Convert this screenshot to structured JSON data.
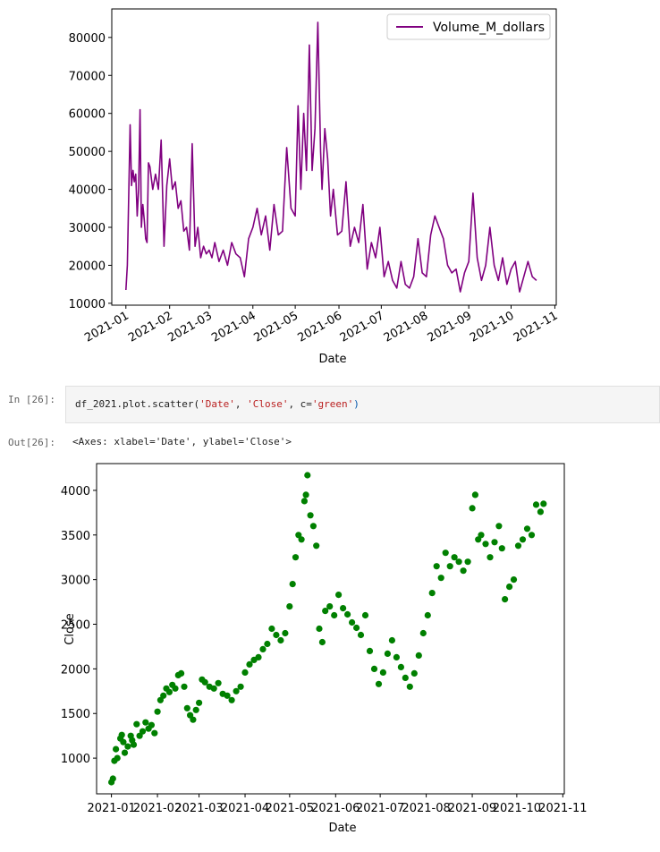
{
  "cells": {
    "input_prompt": "In [26]:",
    "output_prompt": "Out[26]:",
    "code": {
      "prefix": "df_2021.plot.scatter(",
      "arg1": "'Date'",
      "sep1": ", ",
      "arg2": "'Close'",
      "sep2": ", c=",
      "arg3": "'green'",
      "suffix": ")"
    },
    "output_text": "<Axes: xlabel='Date', ylabel='Close'>"
  },
  "colors": {
    "line": "#800080",
    "scatter": "#008000"
  },
  "chart_data": [
    {
      "type": "line",
      "title": "",
      "xlabel": "Date",
      "ylabel": "",
      "legend": {
        "position": "top-right",
        "entries": [
          "Volume_M_dollars"
        ]
      },
      "x_ticks": [
        "2021-01",
        "2021-02",
        "2021-03",
        "2021-04",
        "2021-05",
        "2021-06",
        "2021-07",
        "2021-08",
        "2021-09",
        "2021-10",
        "2021-11"
      ],
      "y_ticks": [
        "10000",
        "20000",
        "30000",
        "40000",
        "50000",
        "60000",
        "70000",
        "80000"
      ],
      "xlim": [
        "2020-12-22",
        "2021-11-02"
      ],
      "ylim": [
        9500,
        87500
      ],
      "series": [
        {
          "name": "Volume_M_dollars",
          "color": "#800080",
          "x": [
            "2021-01-01",
            "2021-01-02",
            "2021-01-04",
            "2021-01-05",
            "2021-01-06",
            "2021-01-07",
            "2021-01-08",
            "2021-01-09",
            "2021-01-10",
            "2021-01-11",
            "2021-01-12",
            "2021-01-13",
            "2021-01-14",
            "2021-01-15",
            "2021-01-16",
            "2021-01-17",
            "2021-01-18",
            "2021-01-20",
            "2021-01-22",
            "2021-01-24",
            "2021-01-26",
            "2021-01-28",
            "2021-01-30",
            "2021-02-01",
            "2021-02-03",
            "2021-02-05",
            "2021-02-07",
            "2021-02-09",
            "2021-02-11",
            "2021-02-13",
            "2021-02-15",
            "2021-02-17",
            "2021-02-19",
            "2021-02-21",
            "2021-02-23",
            "2021-02-25",
            "2021-02-27",
            "2021-03-01",
            "2021-03-03",
            "2021-03-05",
            "2021-03-08",
            "2021-03-11",
            "2021-03-14",
            "2021-03-17",
            "2021-03-20",
            "2021-03-23",
            "2021-03-26",
            "2021-03-29",
            "2021-04-01",
            "2021-04-04",
            "2021-04-07",
            "2021-04-10",
            "2021-04-13",
            "2021-04-16",
            "2021-04-19",
            "2021-04-22",
            "2021-04-25",
            "2021-04-28",
            "2021-05-01",
            "2021-05-03",
            "2021-05-05",
            "2021-05-07",
            "2021-05-09",
            "2021-05-11",
            "2021-05-13",
            "2021-05-15",
            "2021-05-17",
            "2021-05-19",
            "2021-05-20",
            "2021-05-22",
            "2021-05-24",
            "2021-05-26",
            "2021-05-28",
            "2021-05-31",
            "2021-06-03",
            "2021-06-06",
            "2021-06-09",
            "2021-06-12",
            "2021-06-15",
            "2021-06-18",
            "2021-06-21",
            "2021-06-24",
            "2021-06-27",
            "2021-06-30",
            "2021-07-03",
            "2021-07-06",
            "2021-07-09",
            "2021-07-12",
            "2021-07-15",
            "2021-07-18",
            "2021-07-21",
            "2021-07-24",
            "2021-07-27",
            "2021-07-30",
            "2021-08-02",
            "2021-08-05",
            "2021-08-08",
            "2021-08-11",
            "2021-08-14",
            "2021-08-17",
            "2021-08-20",
            "2021-08-23",
            "2021-08-26",
            "2021-08-29",
            "2021-09-01",
            "2021-09-04",
            "2021-09-07",
            "2021-09-10",
            "2021-09-13",
            "2021-09-16",
            "2021-09-19",
            "2021-09-22",
            "2021-09-25",
            "2021-09-28",
            "2021-10-01",
            "2021-10-04",
            "2021-10-07",
            "2021-10-10",
            "2021-10-13",
            "2021-10-16",
            "2021-10-19"
          ],
          "values": [
            13500,
            20000,
            57000,
            41000,
            45000,
            42000,
            44000,
            33000,
            40000,
            61000,
            30000,
            36000,
            32000,
            27000,
            26000,
            47000,
            46000,
            40000,
            44000,
            40000,
            53000,
            25000,
            41000,
            48000,
            40000,
            42000,
            35000,
            37000,
            29000,
            30000,
            24000,
            52000,
            25000,
            30000,
            22000,
            25000,
            23000,
            24000,
            22000,
            26000,
            21000,
            24000,
            20000,
            26000,
            23000,
            22000,
            17000,
            27000,
            30000,
            35000,
            28000,
            33000,
            24000,
            36000,
            28000,
            29000,
            51000,
            35000,
            33000,
            62000,
            40000,
            60000,
            45000,
            78000,
            45000,
            56000,
            84000,
            50000,
            40000,
            56000,
            48000,
            33000,
            40000,
            28000,
            29000,
            42000,
            25000,
            30000,
            26000,
            36000,
            19000,
            26000,
            22000,
            30000,
            17000,
            21000,
            16000,
            14000,
            21000,
            15000,
            14000,
            17000,
            27000,
            18000,
            17000,
            28000,
            33000,
            30000,
            27000,
            20000,
            18000,
            19000,
            13000,
            18000,
            21000,
            39000,
            22000,
            16000,
            20000,
            30000,
            20000,
            16000,
            22000,
            15000,
            19000,
            21000,
            13000,
            17000,
            21000,
            17000,
            16000
          ]
        }
      ]
    },
    {
      "type": "scatter",
      "title": "",
      "xlabel": "Date",
      "ylabel": "Close",
      "x_ticks": [
        "2021-01",
        "2021-02",
        "2021-03",
        "2021-04",
        "2021-05",
        "2021-06",
        "2021-07",
        "2021-08",
        "2021-09",
        "2021-10",
        "2021-11"
      ],
      "y_ticks": [
        "1000",
        "1500",
        "2000",
        "2500",
        "3000",
        "3500",
        "4000"
      ],
      "xlim": [
        "2020-12-22",
        "2021-11-02"
      ],
      "ylim": [
        600,
        4300
      ],
      "series": [
        {
          "name": "",
          "color": "#008000",
          "x": [
            "2021-01-01",
            "2021-01-02",
            "2021-01-03",
            "2021-01-04",
            "2021-01-05",
            "2021-01-07",
            "2021-01-08",
            "2021-01-09",
            "2021-01-10",
            "2021-01-12",
            "2021-01-14",
            "2021-01-15",
            "2021-01-16",
            "2021-01-18",
            "2021-01-20",
            "2021-01-22",
            "2021-01-24",
            "2021-01-26",
            "2021-01-28",
            "2021-01-30",
            "2021-02-01",
            "2021-02-03",
            "2021-02-05",
            "2021-02-07",
            "2021-02-09",
            "2021-02-11",
            "2021-02-13",
            "2021-02-15",
            "2021-02-17",
            "2021-02-19",
            "2021-02-21",
            "2021-02-23",
            "2021-02-25",
            "2021-02-27",
            "2021-03-01",
            "2021-03-03",
            "2021-03-05",
            "2021-03-08",
            "2021-03-11",
            "2021-03-14",
            "2021-03-17",
            "2021-03-20",
            "2021-03-23",
            "2021-03-26",
            "2021-03-29",
            "2021-04-01",
            "2021-04-04",
            "2021-04-07",
            "2021-04-10",
            "2021-04-13",
            "2021-04-16",
            "2021-04-19",
            "2021-04-22",
            "2021-04-25",
            "2021-04-28",
            "2021-05-01",
            "2021-05-03",
            "2021-05-05",
            "2021-05-07",
            "2021-05-09",
            "2021-05-11",
            "2021-05-12",
            "2021-05-13",
            "2021-05-15",
            "2021-05-17",
            "2021-05-19",
            "2021-05-21",
            "2021-05-23",
            "2021-05-25",
            "2021-05-28",
            "2021-05-31",
            "2021-06-03",
            "2021-06-06",
            "2021-06-09",
            "2021-06-12",
            "2021-06-15",
            "2021-06-18",
            "2021-06-21",
            "2021-06-24",
            "2021-06-27",
            "2021-06-30",
            "2021-07-03",
            "2021-07-06",
            "2021-07-09",
            "2021-07-12",
            "2021-07-15",
            "2021-07-18",
            "2021-07-21",
            "2021-07-24",
            "2021-07-27",
            "2021-07-30",
            "2021-08-02",
            "2021-08-05",
            "2021-08-08",
            "2021-08-11",
            "2021-08-14",
            "2021-08-17",
            "2021-08-20",
            "2021-08-23",
            "2021-08-26",
            "2021-08-29",
            "2021-09-01",
            "2021-09-03",
            "2021-09-05",
            "2021-09-07",
            "2021-09-10",
            "2021-09-13",
            "2021-09-16",
            "2021-09-19",
            "2021-09-21",
            "2021-09-23",
            "2021-09-26",
            "2021-09-29",
            "2021-10-02",
            "2021-10-05",
            "2021-10-08",
            "2021-10-11",
            "2021-10-14",
            "2021-10-17",
            "2021-10-19"
          ],
          "values": [
            730,
            770,
            970,
            1100,
            1000,
            1220,
            1260,
            1180,
            1060,
            1130,
            1250,
            1200,
            1150,
            1380,
            1250,
            1300,
            1400,
            1330,
            1370,
            1280,
            1520,
            1650,
            1700,
            1780,
            1740,
            1820,
            1780,
            1930,
            1950,
            1800,
            1560,
            1480,
            1430,
            1540,
            1620,
            1880,
            1850,
            1800,
            1780,
            1840,
            1720,
            1700,
            1650,
            1750,
            1800,
            1960,
            2050,
            2100,
            2130,
            2220,
            2280,
            2450,
            2380,
            2320,
            2400,
            2700,
            2950,
            3250,
            3500,
            3450,
            3880,
            3950,
            4170,
            3720,
            3600,
            3380,
            2450,
            2300,
            2650,
            2700,
            2600,
            2830,
            2680,
            2610,
            2520,
            2460,
            2380,
            2600,
            2200,
            2000,
            1830,
            1960,
            2170,
            2320,
            2130,
            2020,
            1900,
            1800,
            1950,
            2150,
            2400,
            2600,
            2850,
            3150,
            3020,
            3300,
            3150,
            3250,
            3200,
            3100,
            3200,
            3800,
            3950,
            3450,
            3500,
            3400,
            3250,
            3420,
            3600,
            3350,
            2780,
            2920,
            3000,
            3380,
            3450,
            3570,
            3500,
            3840,
            3760,
            3850
          ]
        }
      ]
    }
  ]
}
